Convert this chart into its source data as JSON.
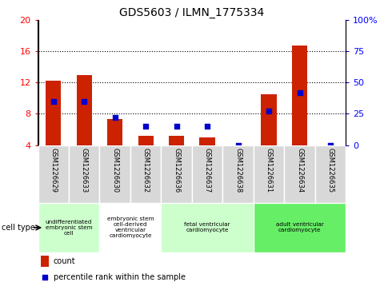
{
  "title": "GDS5603 / ILMN_1775334",
  "samples": [
    "GSM1226629",
    "GSM1226633",
    "GSM1226630",
    "GSM1226632",
    "GSM1226636",
    "GSM1226637",
    "GSM1226638",
    "GSM1226631",
    "GSM1226634",
    "GSM1226635"
  ],
  "counts": [
    12.3,
    13.0,
    7.3,
    5.2,
    5.2,
    5.0,
    4.0,
    10.5,
    16.8,
    4.0
  ],
  "pct_vals_right": [
    35,
    35,
    22,
    15,
    15,
    15,
    0,
    27,
    42,
    0
  ],
  "ylim_left": [
    4,
    20
  ],
  "ylim_right": [
    0,
    100
  ],
  "yticks_left": [
    4,
    8,
    12,
    16,
    20
  ],
  "yticks_right": [
    0,
    25,
    50,
    75,
    100
  ],
  "ytick_labels_right": [
    "0",
    "25",
    "50",
    "75",
    "100%"
  ],
  "bar_color": "#cc2200",
  "percentile_color": "#0000cc",
  "cell_types": [
    {
      "label": "undifferentiated\nembryonic stem\ncell",
      "span": [
        0,
        2
      ],
      "color": "#ccffcc"
    },
    {
      "label": "embryonic stem\ncell-derived\nventricular\ncardiomyocyte",
      "span": [
        2,
        4
      ],
      "color": "#ffffff"
    },
    {
      "label": "fetal ventricular\ncardiomyocyte",
      "span": [
        4,
        7
      ],
      "color": "#ccffcc"
    },
    {
      "label": "adult ventricular\ncardiomyocyte",
      "span": [
        7,
        10
      ],
      "color": "#66ee66"
    }
  ],
  "legend_count_label": "count",
  "legend_pct_label": "percentile rank within the sample",
  "cell_type_label": "cell type",
  "bar_width": 0.5
}
